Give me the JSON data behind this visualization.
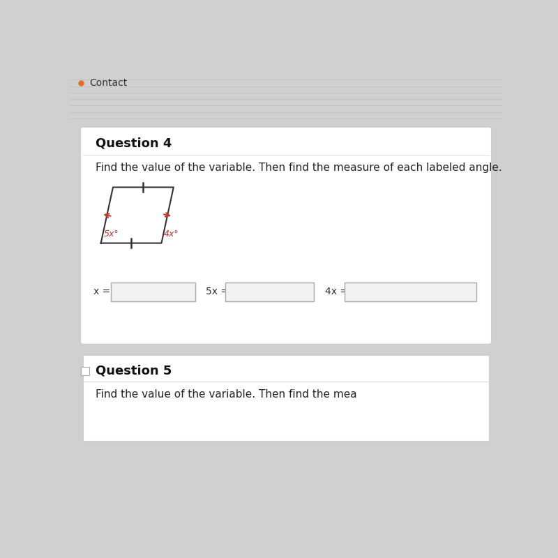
{
  "page_bg": "#d0d0d0",
  "contact_text": "Contact",
  "question4_title": "Question 4",
  "question4_instruction": "Find the value of the variable. Then find the measure of each labeled angle.",
  "question5_title": "Question 5",
  "question5_instruction": "Find the value of the variable. Then find the mea",
  "angle_label_5x_color": "#c0392b",
  "angle_label_4x_color": "#c0392b",
  "angle_label_5x": "5x°",
  "angle_label_4x": "4x°",
  "tick_color": "#333333",
  "shape_color": "#333333",
  "label_x_eq": "x =",
  "label_5x_eq": "5x =",
  "label_4x_eq": "4x ="
}
